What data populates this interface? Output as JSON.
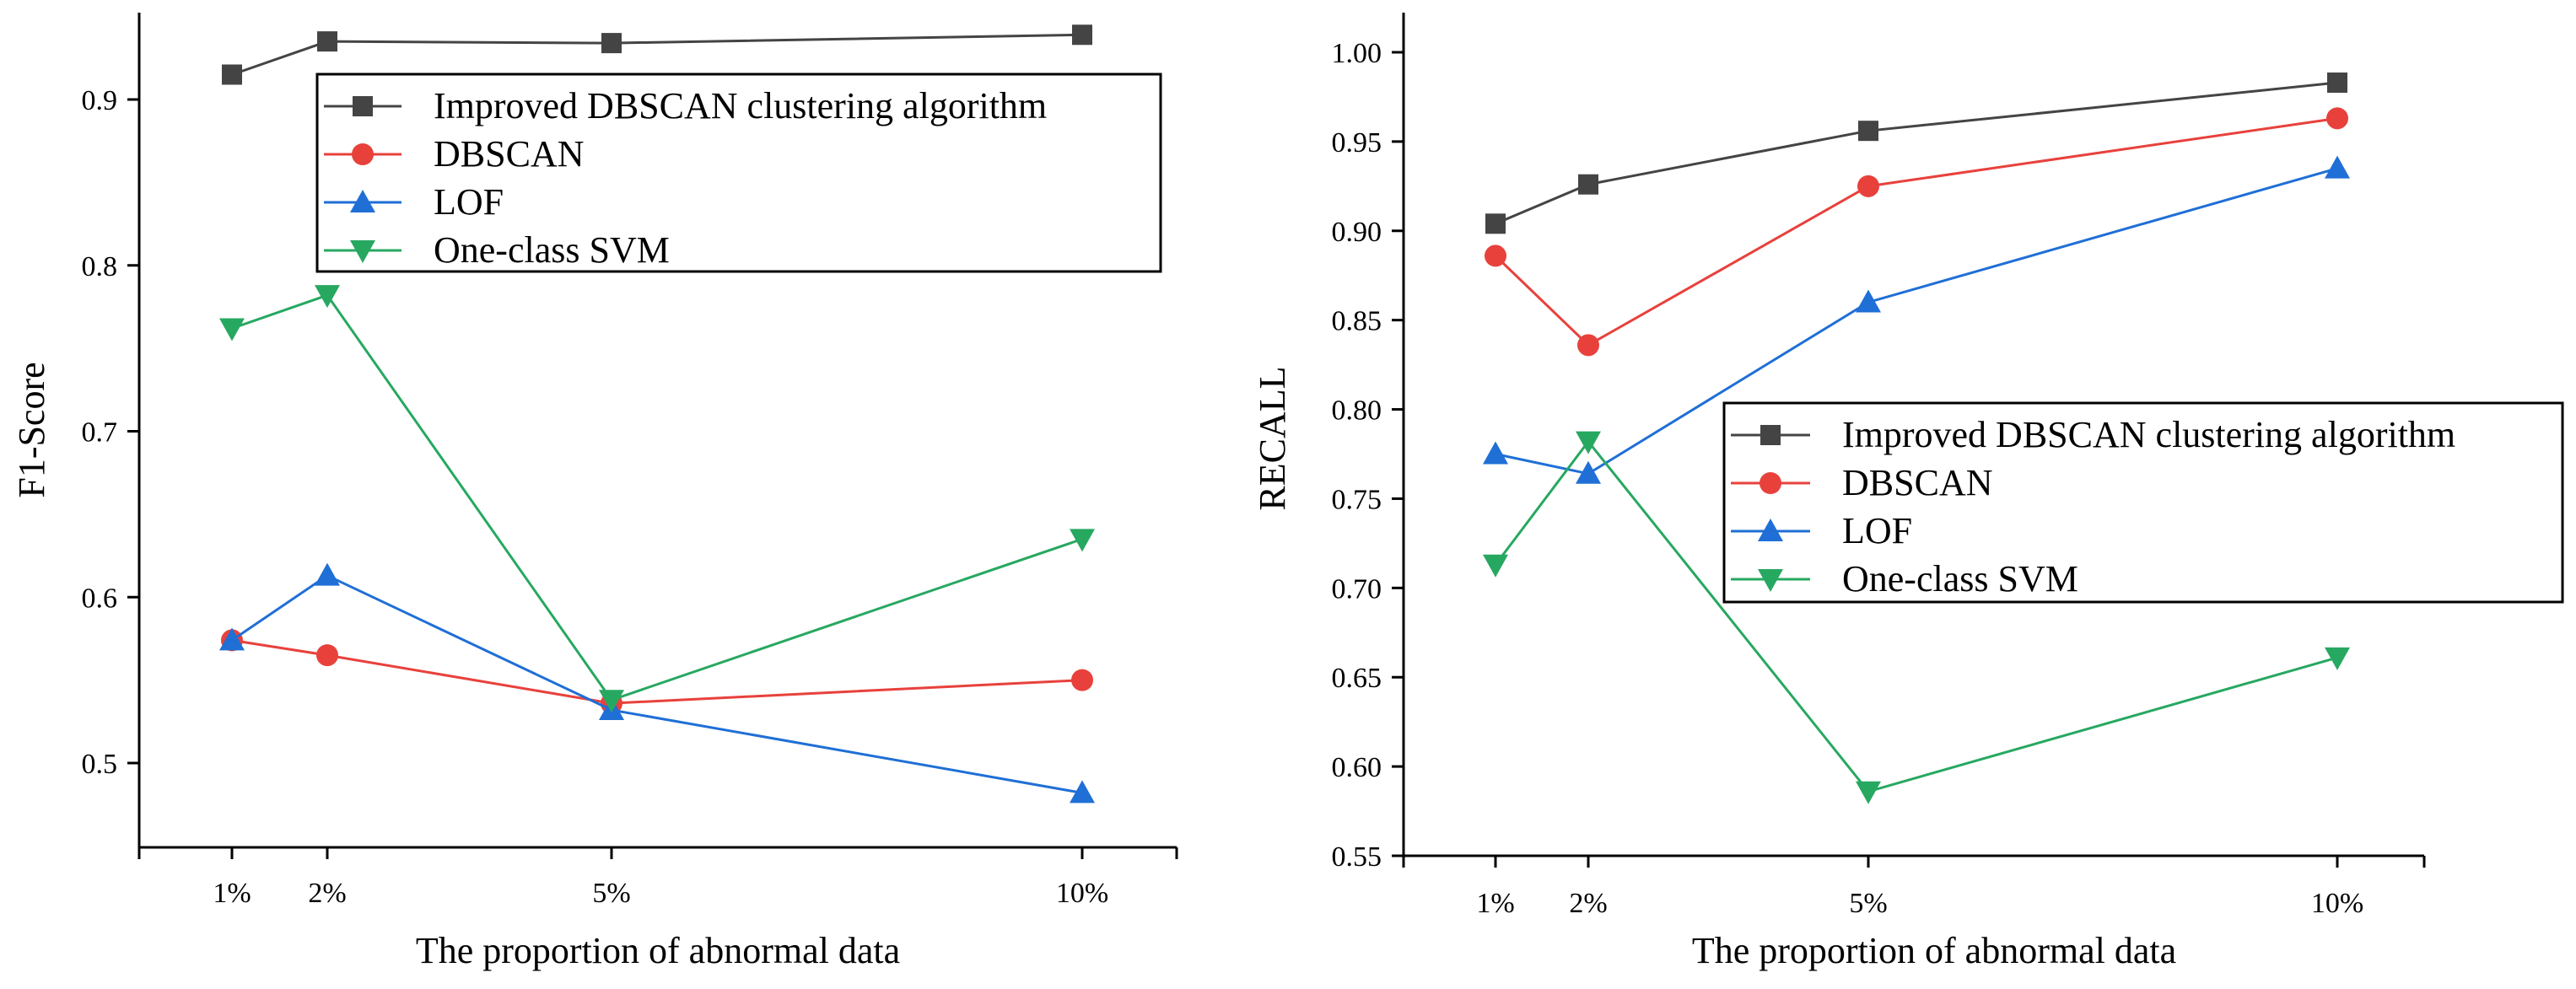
{
  "chart_data": [
    {
      "type": "line",
      "title": "",
      "xlabel": "The proportion of abnormal data",
      "ylabel": "F1-Score",
      "categories": [
        "1%",
        "2%",
        "5%",
        "10%"
      ],
      "x": [
        1,
        2,
        5,
        10
      ],
      "xlim": [
        -0.0,
        11.0
      ],
      "ylim": [
        0.45,
        0.95
      ],
      "yticks": [
        "0.5",
        "0.6",
        "0.7",
        "0.8",
        "0.9"
      ],
      "legend_position": "top-right",
      "grid": false,
      "series": [
        {
          "name": "Improved DBSCAN clustering algorithm",
          "color": "#444444",
          "marker": "square",
          "values": [
            0.915,
            0.935,
            0.934,
            0.939
          ]
        },
        {
          "name": "DBSCAN",
          "color": "#e8413c",
          "marker": "circle",
          "values": [
            0.574,
            0.565,
            0.536,
            0.55
          ]
        },
        {
          "name": "LOF",
          "color": "#1f6fd6",
          "marker": "triangle-up",
          "values": [
            0.574,
            0.613,
            0.532,
            0.482
          ]
        },
        {
          "name": "One-class SVM",
          "color": "#27a861",
          "marker": "triangle-down",
          "values": [
            0.762,
            0.782,
            0.538,
            0.635
          ]
        }
      ]
    },
    {
      "type": "line",
      "title": "",
      "xlabel": "The proportion of abnormal data",
      "ylabel": "RECALL",
      "categories": [
        "1%",
        "2%",
        "5%",
        "10%"
      ],
      "x": [
        1,
        2,
        5,
        10
      ],
      "xlim": [
        -0.0,
        11.0
      ],
      "ylim": [
        0.55,
        1.0
      ],
      "yticks": [
        "0.55",
        "0.60",
        "0.65",
        "0.70",
        "0.75",
        "0.80",
        "0.85",
        "0.90",
        "0.95",
        "1.00"
      ],
      "legend_position": "middle-right",
      "grid": false,
      "series": [
        {
          "name": "Improved DBSCAN clustering algorithm",
          "color": "#444444",
          "marker": "square",
          "values": [
            0.904,
            0.926,
            0.956,
            0.983
          ]
        },
        {
          "name": "DBSCAN",
          "color": "#e8413c",
          "marker": "circle",
          "values": [
            0.886,
            0.836,
            0.925,
            0.963
          ]
        },
        {
          "name": "LOF",
          "color": "#1f6fd6",
          "marker": "triangle-up",
          "values": [
            0.775,
            0.764,
            0.86,
            0.935
          ]
        },
        {
          "name": "One-class SVM",
          "color": "#27a861",
          "marker": "triangle-down",
          "values": [
            0.713,
            0.782,
            0.586,
            0.661
          ]
        }
      ]
    }
  ]
}
